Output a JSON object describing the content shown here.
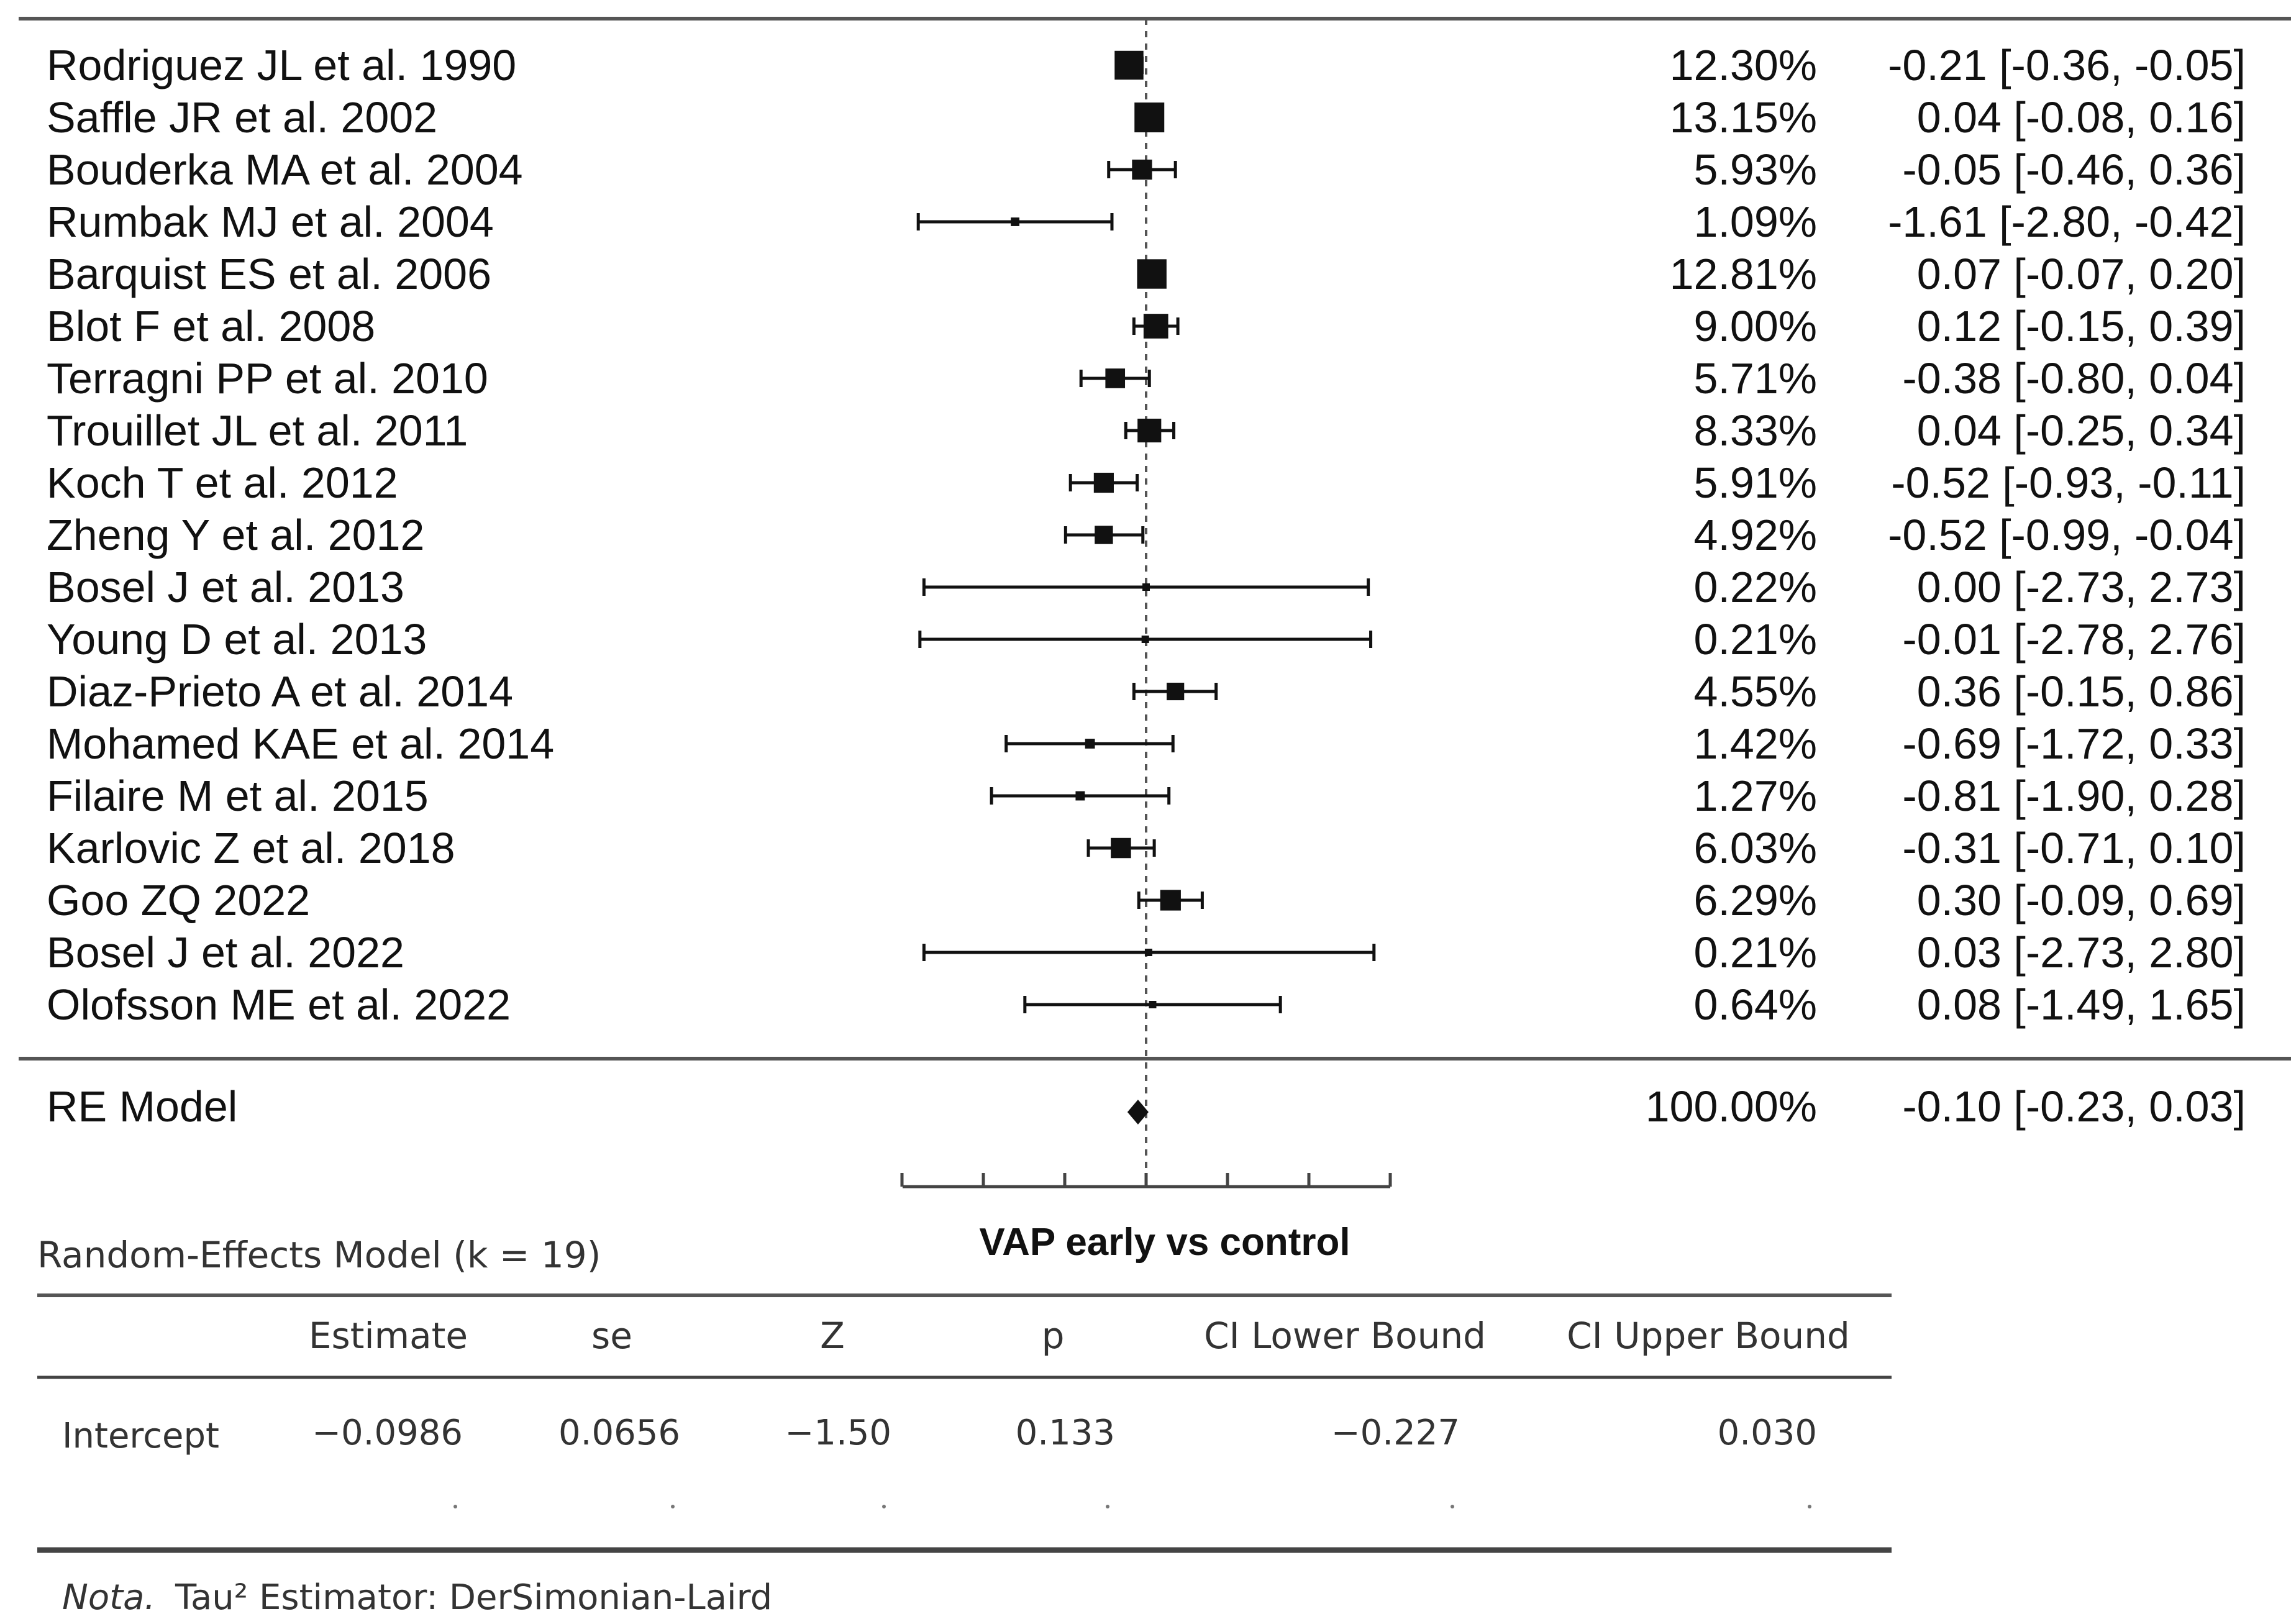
{
  "chart_data": {
    "type": "forest",
    "xlabel": "VAP early vs control",
    "xlim": [
      -3,
      3
    ],
    "reference_line": 0,
    "studies": [
      {
        "label": "Rodriguez JL et al. 1990",
        "weight": "12.30%",
        "ci_text": "-0.21 [-0.36, -0.05]",
        "est": -0.21,
        "lo": -0.36,
        "hi": -0.05,
        "w": 12.3
      },
      {
        "label": "Saffle JR et al. 2002",
        "weight": "13.15%",
        "ci_text": "0.04 [-0.08,  0.16]",
        "est": 0.04,
        "lo": -0.08,
        "hi": 0.16,
        "w": 13.15
      },
      {
        "label": "Bouderka MA et al. 2004",
        "weight": "5.93%",
        "ci_text": "-0.05 [-0.46,  0.36]",
        "est": -0.05,
        "lo": -0.46,
        "hi": 0.36,
        "w": 5.93
      },
      {
        "label": "Rumbak MJ et al. 2004",
        "weight": "1.09%",
        "ci_text": "-1.61 [-2.80, -0.42]",
        "est": -1.61,
        "lo": -2.8,
        "hi": -0.42,
        "w": 1.09
      },
      {
        "label": "Barquist ES et al. 2006",
        "weight": "12.81%",
        "ci_text": "0.07 [-0.07,  0.20]",
        "est": 0.07,
        "lo": -0.07,
        "hi": 0.2,
        "w": 12.81
      },
      {
        "label": "Blot F et al. 2008",
        "weight": "9.00%",
        "ci_text": "0.12 [-0.15,  0.39]",
        "est": 0.12,
        "lo": -0.15,
        "hi": 0.39,
        "w": 9.0
      },
      {
        "label": "Terragni PP et al. 2010",
        "weight": "5.71%",
        "ci_text": "-0.38 [-0.80,  0.04]",
        "est": -0.38,
        "lo": -0.8,
        "hi": 0.04,
        "w": 5.71
      },
      {
        "label": "Trouillet JL et al. 2011",
        "weight": "8.33%",
        "ci_text": "0.04 [-0.25,  0.34]",
        "est": 0.04,
        "lo": -0.25,
        "hi": 0.34,
        "w": 8.33
      },
      {
        "label": "Koch T et al. 2012",
        "weight": "5.91%",
        "ci_text": "-0.52 [-0.93, -0.11]",
        "est": -0.52,
        "lo": -0.93,
        "hi": -0.11,
        "w": 5.91
      },
      {
        "label": "Zheng Y et al. 2012",
        "weight": "4.92%",
        "ci_text": "-0.52 [-0.99, -0.04]",
        "est": -0.52,
        "lo": -0.99,
        "hi": -0.04,
        "w": 4.92
      },
      {
        "label": "Bosel J et al. 2013",
        "weight": "0.22%",
        "ci_text": "0.00 [-2.73,  2.73]",
        "est": 0.0,
        "lo": -2.73,
        "hi": 2.73,
        "w": 0.22
      },
      {
        "label": "Young D et al. 2013",
        "weight": "0.21%",
        "ci_text": "-0.01 [-2.78,  2.76]",
        "est": -0.01,
        "lo": -2.78,
        "hi": 2.76,
        "w": 0.21
      },
      {
        "label": "Diaz-Prieto A et al. 2014",
        "weight": "4.55%",
        "ci_text": "0.36 [-0.15,  0.86]",
        "est": 0.36,
        "lo": -0.15,
        "hi": 0.86,
        "w": 4.55
      },
      {
        "label": "Mohamed KAE et al. 2014",
        "weight": "1.42%",
        "ci_text": "-0.69 [-1.72,  0.33]",
        "est": -0.69,
        "lo": -1.72,
        "hi": 0.33,
        "w": 1.42
      },
      {
        "label": "Filaire M et al. 2015",
        "weight": "1.27%",
        "ci_text": "-0.81 [-1.90,  0.28]",
        "est": -0.81,
        "lo": -1.9,
        "hi": 0.28,
        "w": 1.27
      },
      {
        "label": "Karlovic Z et al. 2018",
        "weight": "6.03%",
        "ci_text": "-0.31 [-0.71,  0.10]",
        "est": -0.31,
        "lo": -0.71,
        "hi": 0.1,
        "w": 6.03
      },
      {
        "label": "Goo ZQ 2022",
        "weight": "6.29%",
        "ci_text": "0.30 [-0.09,  0.69]",
        "est": 0.3,
        "lo": -0.09,
        "hi": 0.69,
        "w": 6.29
      },
      {
        "label": "Bosel J et al. 2022",
        "weight": "0.21%",
        "ci_text": "0.03 [-2.73,  2.80]",
        "est": 0.03,
        "lo": -2.73,
        "hi": 2.8,
        "w": 0.21
      },
      {
        "label": "Olofsson ME et al. 2022",
        "weight": "0.64%",
        "ci_text": "0.08 [-1.49,  1.65]",
        "est": 0.08,
        "lo": -1.49,
        "hi": 1.65,
        "w": 0.64
      }
    ],
    "summary": {
      "label": "RE Model",
      "weight": "100.00%",
      "ci_text": "-0.10 [-0.23,  0.03]",
      "est": -0.1,
      "lo": -0.23,
      "hi": 0.03
    }
  },
  "model_table": {
    "title": "Random-Effects Model (k = 19)",
    "headers": [
      "Estimate",
      "se",
      "Z",
      "p",
      "CI Lower Bound",
      "CI Upper Bound"
    ],
    "row_label": "Intercept",
    "values": [
      "−0.0986",
      "0.0656",
      "−1.50",
      "0.133",
      "−0.227",
      "0.030"
    ],
    "note_italic": "Nota.",
    "note_text": "Tau² Estimator: DerSimonian-Laird"
  }
}
